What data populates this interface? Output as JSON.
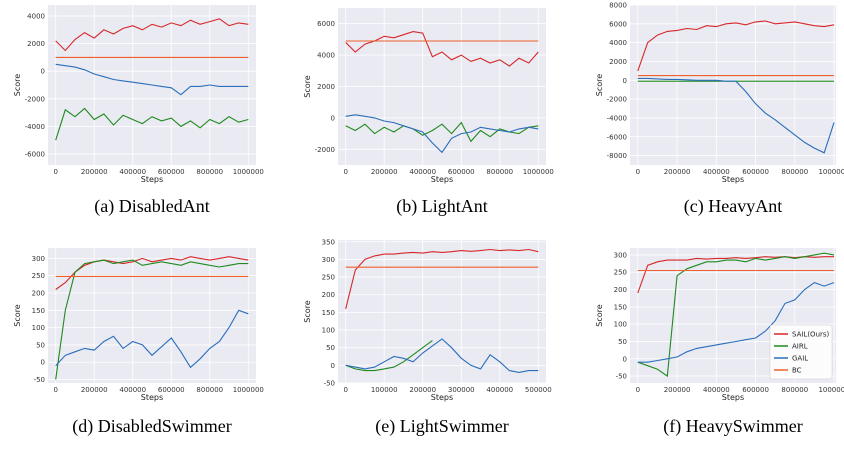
{
  "chart_data": [
    {
      "type": "line",
      "title": "(a) DisabledAnt",
      "x_label": "Steps",
      "y_label": "Score",
      "x": [
        0,
        50000,
        100000,
        150000,
        200000,
        250000,
        300000,
        350000,
        400000,
        450000,
        500000,
        550000,
        600000,
        650000,
        700000,
        750000,
        800000,
        850000,
        900000,
        950000,
        1000000
      ],
      "xlim": [
        -40000,
        1040000
      ],
      "xticks": [
        0,
        200000,
        400000,
        600000,
        800000,
        1000000
      ],
      "ylim": [
        -6800,
        4800
      ],
      "yticks": [
        -6000,
        -4000,
        -2000,
        0,
        2000,
        4000
      ],
      "grid": true,
      "series": [
        {
          "color": "#d62728",
          "values": [
            2200,
            1500,
            2300,
            2800,
            2400,
            3000,
            2700,
            3100,
            3300,
            3000,
            3400,
            3200,
            3500,
            3300,
            3700,
            3400,
            3600,
            3800,
            3300,
            3500,
            3400
          ]
        },
        {
          "color": "#1f8a1f",
          "values": [
            -5000,
            -2800,
            -3300,
            -2700,
            -3500,
            -3100,
            -3900,
            -3200,
            -3500,
            -3800,
            -3300,
            -3600,
            -3400,
            -4000,
            -3600,
            -4100,
            -3500,
            -3800,
            -3300,
            -3700,
            -3500
          ]
        },
        {
          "color": "#2a6ebb",
          "values": [
            500,
            400,
            300,
            100,
            -200,
            -400,
            -600,
            -700,
            -800,
            -900,
            -1000,
            -1100,
            -1200,
            -1700,
            -1100,
            -1100,
            -1000,
            -1100,
            -1100,
            -1100,
            -1100
          ]
        },
        {
          "color": "#f0602a",
          "values": [
            1000,
            1000,
            1000,
            1000,
            1000,
            1000,
            1000,
            1000,
            1000,
            1000,
            1000,
            1000,
            1000,
            1000,
            1000,
            1000,
            1000,
            1000,
            1000,
            1000,
            1000
          ]
        }
      ]
    },
    {
      "type": "line",
      "title": "(b) LightAnt",
      "x_label": "Steps",
      "y_label": "Score",
      "x": [
        0,
        50000,
        100000,
        150000,
        200000,
        250000,
        300000,
        350000,
        400000,
        450000,
        500000,
        550000,
        600000,
        650000,
        700000,
        750000,
        800000,
        850000,
        900000,
        950000,
        1000000
      ],
      "xlim": [
        -40000,
        1040000
      ],
      "xticks": [
        0,
        200000,
        400000,
        600000,
        800000,
        1000000
      ],
      "ylim": [
        -3000,
        7000
      ],
      "yticks": [
        -2000,
        0,
        2000,
        4000,
        6000
      ],
      "grid": true,
      "series": [
        {
          "color": "#d62728",
          "values": [
            4800,
            4200,
            4700,
            4900,
            5200,
            5100,
            5300,
            5500,
            5400,
            3900,
            4200,
            3700,
            4000,
            3600,
            3800,
            3500,
            3700,
            3300,
            3800,
            3500,
            4200
          ]
        },
        {
          "color": "#1f8a1f",
          "values": [
            -500,
            -800,
            -400,
            -1000,
            -600,
            -900,
            -500,
            -700,
            -1100,
            -800,
            -400,
            -1000,
            -300,
            -1500,
            -800,
            -1200,
            -700,
            -900,
            -1000,
            -600,
            -500
          ]
        },
        {
          "color": "#2a6ebb",
          "values": [
            100,
            200,
            100,
            0,
            -200,
            -300,
            -500,
            -700,
            -900,
            -1600,
            -2200,
            -1300,
            -1000,
            -900,
            -600,
            -700,
            -800,
            -900,
            -700,
            -600,
            -700
          ]
        },
        {
          "color": "#f0602a",
          "values": [
            4900,
            4900,
            4900,
            4900,
            4900,
            4900,
            4900,
            4900,
            4900,
            4900,
            4900,
            4900,
            4900,
            4900,
            4900,
            4900,
            4900,
            4900,
            4900,
            4900,
            4900
          ]
        }
      ]
    },
    {
      "type": "line",
      "title": "(c) HeavyAnt",
      "x_label": "Steps",
      "y_label": "Score",
      "x": [
        0,
        50000,
        100000,
        150000,
        200000,
        250000,
        300000,
        350000,
        400000,
        450000,
        500000,
        550000,
        600000,
        650000,
        700000,
        750000,
        800000,
        850000,
        900000,
        950000,
        1000000
      ],
      "xlim": [
        -40000,
        1010000
      ],
      "xticks": [
        0,
        200000,
        400000,
        600000,
        800000,
        1000000
      ],
      "ylim": [
        -9000,
        8000
      ],
      "yticks": [
        -8000,
        -6000,
        -4000,
        -2000,
        0,
        2000,
        4000,
        6000,
        8000
      ],
      "grid": true,
      "series": [
        {
          "color": "#d62728",
          "values": [
            1000,
            4000,
            4800,
            5200,
            5300,
            5500,
            5400,
            5800,
            5700,
            6000,
            6100,
            5900,
            6200,
            6300,
            6000,
            6100,
            6200,
            6000,
            5800,
            5700,
            5900
          ]
        },
        {
          "color": "#1f8a1f",
          "values": [
            -100,
            -100,
            -100,
            -100,
            -100,
            -100,
            -100,
            -100,
            -100,
            -100,
            -100,
            -100,
            -100,
            -100,
            -100,
            -100,
            -100,
            -100,
            -100,
            -100,
            -100
          ]
        },
        {
          "color": "#2a6ebb",
          "values": [
            200,
            200,
            150,
            100,
            100,
            50,
            0,
            0,
            0,
            -100,
            -100,
            -1200,
            -2500,
            -3500,
            -4200,
            -5000,
            -5800,
            -6600,
            -7200,
            -7700,
            -4500
          ]
        },
        {
          "color": "#f0602a",
          "values": [
            500,
            500,
            500,
            500,
            500,
            500,
            500,
            500,
            500,
            500,
            500,
            500,
            500,
            500,
            500,
            500,
            500,
            500,
            500,
            500,
            500
          ]
        }
      ]
    },
    {
      "type": "line",
      "title": "(d) DisabledSwimmer",
      "x_label": "Steps",
      "y_label": "Score",
      "x": [
        0,
        50000,
        100000,
        150000,
        200000,
        250000,
        300000,
        350000,
        400000,
        450000,
        500000,
        550000,
        600000,
        650000,
        700000,
        750000,
        800000,
        850000,
        900000,
        950000,
        1000000
      ],
      "xlim": [
        -40000,
        1040000
      ],
      "xticks": [
        0,
        200000,
        400000,
        600000,
        800000,
        1000000
      ],
      "ylim": [
        -60,
        330
      ],
      "yticks": [
        -50,
        0,
        50,
        100,
        150,
        200,
        250,
        300
      ],
      "grid": true,
      "series": [
        {
          "color": "#d62728",
          "values": [
            210,
            230,
            260,
            280,
            290,
            295,
            290,
            285,
            290,
            300,
            290,
            295,
            300,
            295,
            305,
            300,
            295,
            300,
            305,
            300,
            295
          ]
        },
        {
          "color": "#1f8a1f",
          "values": [
            -50,
            150,
            260,
            285,
            290,
            295,
            285,
            290,
            295,
            280,
            285,
            290,
            285,
            280,
            290,
            285,
            280,
            275,
            280,
            285,
            285
          ]
        },
        {
          "color": "#2a6ebb",
          "values": [
            -10,
            20,
            30,
            40,
            35,
            60,
            75,
            40,
            60,
            50,
            20,
            45,
            70,
            30,
            -15,
            10,
            40,
            60,
            100,
            150,
            140
          ]
        },
        {
          "color": "#f0602a",
          "values": [
            248,
            248,
            248,
            248,
            248,
            248,
            248,
            248,
            248,
            248,
            248,
            248,
            248,
            248,
            248,
            248,
            248,
            248,
            248,
            248,
            248
          ]
        }
      ]
    },
    {
      "type": "line",
      "title": "(e) LightSwimmer",
      "x_label": "Steps",
      "y_label": "Score",
      "x": [
        0,
        25000,
        50000,
        75000,
        100000,
        125000,
        150000,
        175000,
        200000,
        225000,
        250000,
        275000,
        300000,
        325000,
        350000,
        375000,
        400000,
        425000,
        450000,
        475000,
        500000
      ],
      "xlim": [
        -20000,
        520000
      ],
      "xticks": [
        0,
        100000,
        200000,
        300000,
        400000,
        500000
      ],
      "ylim": [
        -50,
        355
      ],
      "yticks": [
        -50,
        0,
        50,
        100,
        150,
        200,
        250,
        300,
        350
      ],
      "grid": true,
      "series": [
        {
          "color": "#d62728",
          "values": [
            160,
            270,
            300,
            310,
            315,
            315,
            318,
            320,
            318,
            322,
            320,
            322,
            325,
            323,
            325,
            328,
            325,
            327,
            325,
            328,
            322
          ]
        },
        {
          "color": "#1f8a1f",
          "values": [
            0,
            -10,
            -15,
            -15,
            -10,
            -5,
            10,
            30,
            50,
            70,
            null,
            null,
            null,
            null,
            null,
            null,
            null,
            null,
            null,
            null,
            null
          ]
        },
        {
          "color": "#2a6ebb",
          "values": [
            0,
            -5,
            -10,
            -5,
            10,
            25,
            20,
            10,
            35,
            55,
            75,
            50,
            20,
            0,
            -10,
            30,
            10,
            -15,
            -20,
            -15,
            -15
          ]
        },
        {
          "color": "#f0602a",
          "values": [
            278,
            278,
            278,
            278,
            278,
            278,
            278,
            278,
            278,
            278,
            278,
            278,
            278,
            278,
            278,
            278,
            278,
            278,
            278,
            278,
            278
          ]
        }
      ]
    },
    {
      "type": "line",
      "title": "(f) HeavySwimmer",
      "x_label": "Steps",
      "y_label": "Score",
      "x": [
        0,
        50000,
        100000,
        150000,
        200000,
        250000,
        300000,
        350000,
        400000,
        450000,
        500000,
        550000,
        600000,
        650000,
        700000,
        750000,
        800000,
        850000,
        900000,
        950000,
        1000000
      ],
      "xlim": [
        -40000,
        1010000
      ],
      "xticks": [
        0,
        200000,
        400000,
        600000,
        800000,
        1000000
      ],
      "ylim": [
        -70,
        320
      ],
      "yticks": [
        -50,
        0,
        50,
        100,
        150,
        200,
        250,
        300
      ],
      "grid": true,
      "legend": "lower right",
      "series": [
        {
          "name": "SAIL(Ours)",
          "color": "#d62728",
          "values": [
            190,
            270,
            280,
            285,
            285,
            285,
            290,
            288,
            290,
            290,
            292,
            290,
            292,
            295,
            293,
            295,
            292,
            295,
            293,
            295,
            295
          ]
        },
        {
          "name": "AIRL",
          "color": "#1f8a1f",
          "values": [
            -10,
            -20,
            -30,
            -50,
            240,
            260,
            270,
            280,
            280,
            285,
            285,
            280,
            290,
            285,
            290,
            295,
            290,
            295,
            300,
            305,
            300
          ]
        },
        {
          "name": "GAIL",
          "color": "#2a6ebb",
          "values": [
            -10,
            -10,
            -5,
            0,
            5,
            20,
            30,
            35,
            40,
            45,
            50,
            55,
            60,
            80,
            110,
            160,
            170,
            200,
            220,
            210,
            220
          ]
        },
        {
          "name": "BC",
          "color": "#f0602a",
          "values": [
            255,
            255,
            255,
            255,
            255,
            255,
            255,
            255,
            255,
            255,
            255,
            255,
            255,
            255,
            255,
            255,
            255,
            255,
            255,
            255,
            255
          ]
        }
      ]
    }
  ]
}
